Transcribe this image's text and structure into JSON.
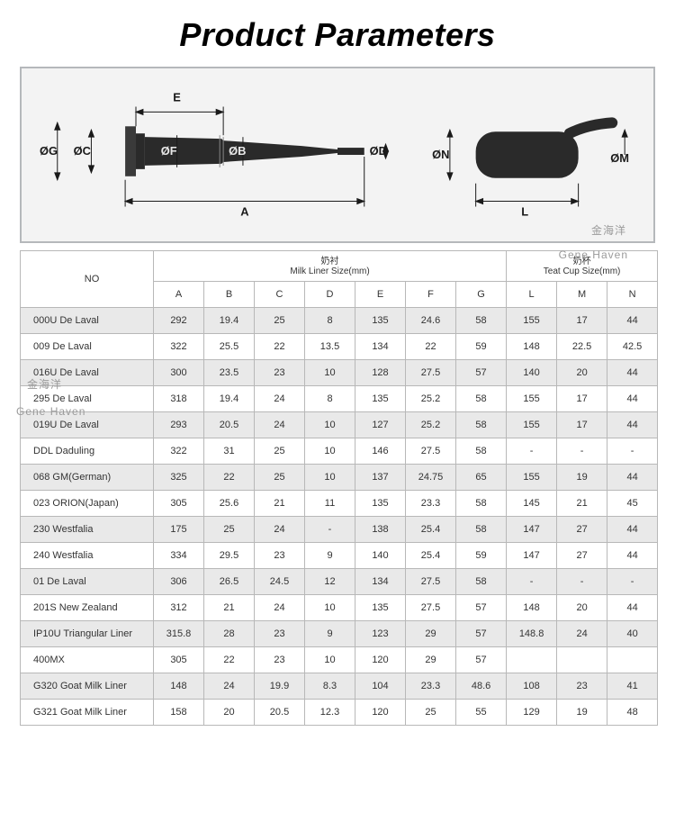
{
  "title": "Product Parameters",
  "watermarks": {
    "wm1": "金海洋",
    "wm2": "Gene Haven",
    "wm3": "金海洋",
    "wm4": "Gene Haven"
  },
  "diagram_labels": {
    "A": "A",
    "B": "ØB",
    "C": "ØC",
    "D": "ØD",
    "E": "E",
    "F": "ØF",
    "G": "ØG",
    "L": "L",
    "M": "ØM",
    "N": "ØN"
  },
  "headers": {
    "no": "NO",
    "milk_liner_cn": "奶衬",
    "milk_liner_en": "Milk Liner Size(mm)",
    "teat_cup_cn": "奶杯",
    "teat_cup_en": "Teat Cup Size(mm)",
    "cols": [
      "A",
      "B",
      "C",
      "D",
      "E",
      "F",
      "G",
      "L",
      "M",
      "N"
    ]
  },
  "rows": [
    {
      "no": "000U  De Laval",
      "A": "292",
      "B": "19.4",
      "C": "25",
      "D": "8",
      "E": "135",
      "F": "24.6",
      "G": "58",
      "L": "155",
      "M": "17",
      "N": "44"
    },
    {
      "no": "009  De Laval",
      "A": "322",
      "B": "25.5",
      "C": "22",
      "D": "13.5",
      "E": "134",
      "F": "22",
      "G": "59",
      "L": "148",
      "M": "22.5",
      "N": "42.5"
    },
    {
      "no": "016U  De Laval",
      "A": "300",
      "B": "23.5",
      "C": "23",
      "D": "10",
      "E": "128",
      "F": "27.5",
      "G": "57",
      "L": "140",
      "M": "20",
      "N": "44"
    },
    {
      "no": "295  De Laval",
      "A": "318",
      "B": "19.4",
      "C": "24",
      "D": "8",
      "E": "135",
      "F": "25.2",
      "G": "58",
      "L": "155",
      "M": "17",
      "N": "44"
    },
    {
      "no": "019U  De Laval",
      "A": "293",
      "B": "20.5",
      "C": "24",
      "D": "10",
      "E": "127",
      "F": "25.2",
      "G": "58",
      "L": "155",
      "M": "17",
      "N": "44"
    },
    {
      "no": "DDL  Daduling",
      "A": "322",
      "B": "31",
      "C": "25",
      "D": "10",
      "E": "146",
      "F": "27.5",
      "G": "58",
      "L": "-",
      "M": "-",
      "N": "-"
    },
    {
      "no": "068  GM(German)",
      "A": "325",
      "B": "22",
      "C": "25",
      "D": "10",
      "E": "137",
      "F": "24.75",
      "G": "65",
      "L": "155",
      "M": "19",
      "N": "44"
    },
    {
      "no": "023  ORION(Japan)",
      "A": "305",
      "B": "25.6",
      "C": "21",
      "D": "11",
      "E": "135",
      "F": "23.3",
      "G": "58",
      "L": "145",
      "M": "21",
      "N": "45"
    },
    {
      "no": "230  Westfalia",
      "A": "175",
      "B": "25",
      "C": "24",
      "D": "-",
      "E": "138",
      "F": "25.4",
      "G": "58",
      "L": "147",
      "M": "27",
      "N": "44"
    },
    {
      "no": "240  Westfalia",
      "A": "334",
      "B": "29.5",
      "C": "23",
      "D": "9",
      "E": "140",
      "F": "25.4",
      "G": "59",
      "L": "147",
      "M": "27",
      "N": "44"
    },
    {
      "no": "01  De Laval",
      "A": "306",
      "B": "26.5",
      "C": "24.5",
      "D": "12",
      "E": "134",
      "F": "27.5",
      "G": "58",
      "L": "-",
      "M": "-",
      "N": "-"
    },
    {
      "no": "201S  New Zealand",
      "A": "312",
      "B": "21",
      "C": "24",
      "D": "10",
      "E": "135",
      "F": "27.5",
      "G": "57",
      "L": "148",
      "M": "20",
      "N": "44"
    },
    {
      "no": "IP10U  Triangular Liner",
      "A": "315.8",
      "B": "28",
      "C": "23",
      "D": "9",
      "E": "123",
      "F": "29",
      "G": "57",
      "L": "148.8",
      "M": "24",
      "N": "40"
    },
    {
      "no": "400MX",
      "A": "305",
      "B": "22",
      "C": "23",
      "D": "10",
      "E": "120",
      "F": "29",
      "G": "57",
      "L": "",
      "M": "",
      "N": ""
    },
    {
      "no": "G320   Goat Milk Liner",
      "A": "148",
      "B": "24",
      "C": "19.9",
      "D": "8.3",
      "E": "104",
      "F": "23.3",
      "G": "48.6",
      "L": "108",
      "M": "23",
      "N": "41"
    },
    {
      "no": "G321   Goat Milk Liner",
      "A": "158",
      "B": "20",
      "C": "20.5",
      "D": "12.3",
      "E": "120",
      "F": "25",
      "G": "55",
      "L": "129",
      "M": "19",
      "N": "48"
    }
  ]
}
